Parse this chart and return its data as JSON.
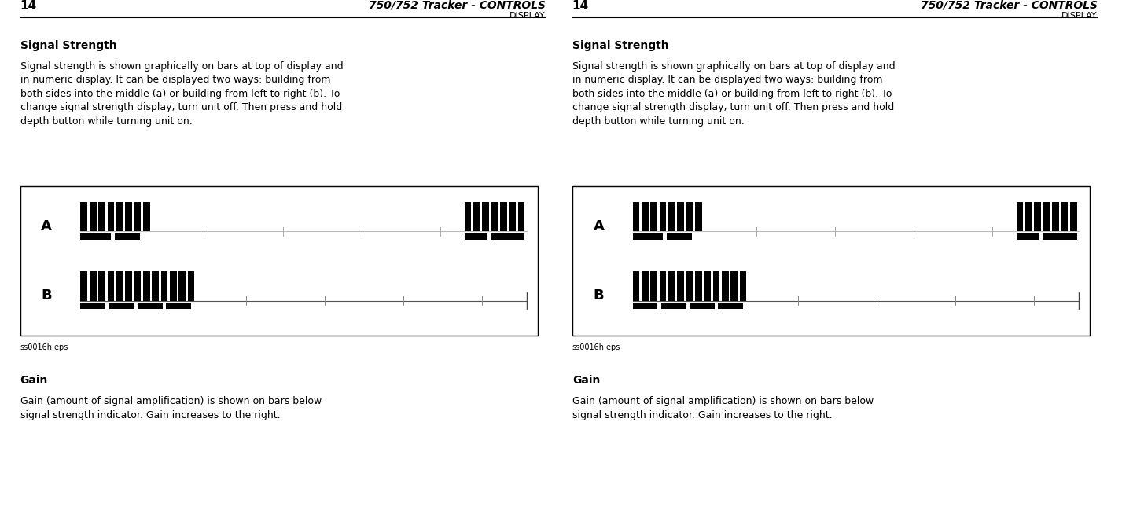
{
  "bg_color": "#ffffff",
  "text_color": "#000000",
  "page_num": "14",
  "header_title": "750/752 Tracker - CONTROLS",
  "header_sub": "DISPLAY",
  "section1_title": "Signal Strength",
  "section1_body": "Signal strength is shown graphically on bars at top of display and\nin numeric display. It can be displayed two ways: building from\nboth sides into the middle (a) or building from left to right (b). To\nchange signal strength display, turn unit off. Then press and hold\ndepth button while turning unit on.",
  "section2_title": "Gain",
  "section2_body": "Gain (amount of signal amplification) is shown on bars below\nsignal strength indicator. Gain increases to the right.",
  "eps_label": "ss0016h.eps",
  "bg_color_box": "#ffffff",
  "bar_color": "#000000",
  "line_color_a": "#aaaaaa",
  "line_color_b": "#333333"
}
